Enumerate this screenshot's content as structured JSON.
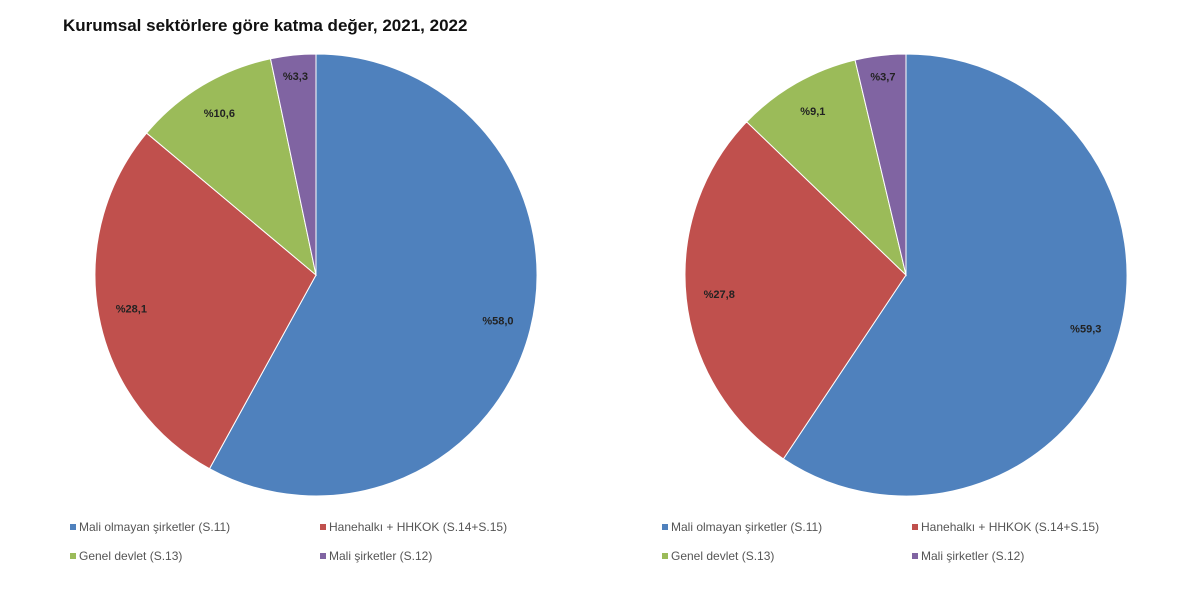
{
  "title": "Kurumsal sektörlere göre katma değer, 2021, 2022",
  "chart_data": [
    {
      "type": "pie",
      "categories": [
        "Mali olmayan şirketler (S.11)",
        "Hanehalkı + HHKOK (S.14+S.15)",
        "Genel devlet (S.13)",
        "Mali şirketler (S.12)"
      ],
      "values": [
        58.0,
        28.1,
        10.6,
        3.3
      ],
      "labels": [
        "%58,0",
        "%28,1",
        "%10,6",
        "%3,3"
      ],
      "colors": [
        "#4f81bd",
        "#c0504d",
        "#9bbb59",
        "#8064a2"
      ],
      "legend": "bottom"
    },
    {
      "type": "pie",
      "categories": [
        "Mali olmayan şirketler (S.11)",
        "Hanehalkı + HHKOK (S.14+S.15)",
        "Genel devlet (S.13)",
        "Mali şirketler (S.12)"
      ],
      "values": [
        59.3,
        27.8,
        9.1,
        3.7
      ],
      "labels": [
        "%59,3",
        "%27,8",
        "%9,1",
        "%3,7"
      ],
      "colors": [
        "#4f81bd",
        "#c0504d",
        "#9bbb59",
        "#8064a2"
      ],
      "legend": "bottom"
    }
  ]
}
